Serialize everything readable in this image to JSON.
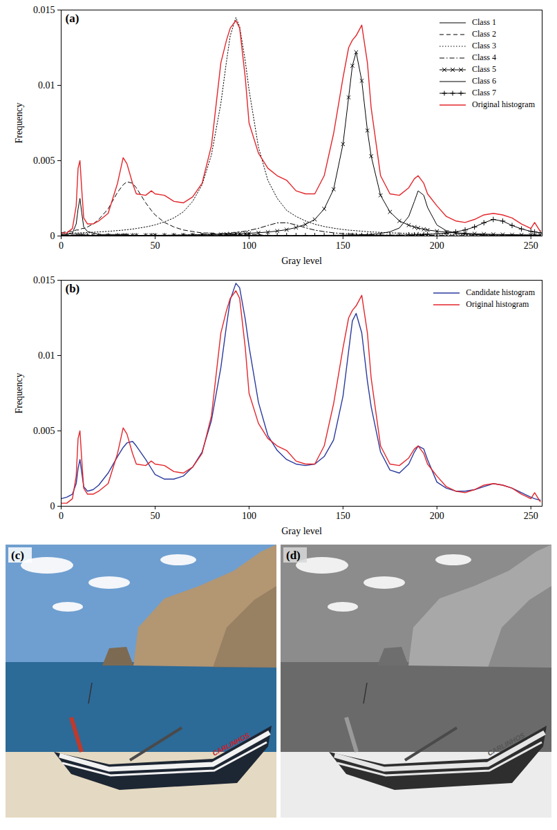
{
  "chart_data": [
    {
      "type": "line",
      "panel": "(a)",
      "xlabel": "Gray level",
      "ylabel": "Frequency",
      "xlim": [
        0,
        256
      ],
      "xticks": [
        0,
        50,
        100,
        150,
        200,
        250
      ],
      "ylim": [
        0,
        0.015
      ],
      "yticks": [
        0,
        0.005,
        0.01,
        0.015
      ],
      "grid": false,
      "legend": "top-right",
      "x": [
        0,
        3,
        6,
        8,
        9,
        10,
        11,
        12,
        14,
        17,
        20,
        25,
        30,
        33,
        35,
        38,
        40,
        45,
        48,
        50,
        55,
        60,
        65,
        70,
        75,
        80,
        85,
        88,
        90,
        93,
        95,
        98,
        100,
        105,
        110,
        115,
        120,
        125,
        130,
        135,
        140,
        145,
        150,
        153,
        155,
        157,
        160,
        163,
        165,
        170,
        175,
        180,
        185,
        188,
        190,
        193,
        195,
        200,
        205,
        210,
        215,
        220,
        225,
        230,
        235,
        240,
        245,
        250,
        252,
        255
      ],
      "series": [
        {
          "name": "Class 1",
          "color": "#000000",
          "line_style": "solid",
          "values": [
            0.0001,
            0.0001,
            0.0002,
            0.0008,
            0.0018,
            0.0025,
            0.0015,
            0.0006,
            0.0003,
            0.0002,
            0.0001,
            0.0001,
            0.0001,
            0.0001,
            0.0001,
            0,
            0,
            0,
            0,
            0,
            0,
            0,
            0,
            0,
            0,
            0,
            0,
            0,
            0,
            0,
            0,
            0,
            0,
            0,
            0,
            0,
            0,
            0,
            0,
            0,
            0,
            0,
            0,
            0,
            0,
            0,
            0,
            0,
            0,
            0,
            0,
            0,
            0,
            0,
            0,
            0,
            0,
            0,
            0,
            0,
            0,
            0,
            0,
            0,
            0,
            0,
            0,
            0,
            0,
            0
          ]
        },
        {
          "name": "Class 2",
          "color": "#000000",
          "line_style": "dashed",
          "values": [
            0.0002,
            0.0003,
            0.0003,
            0.0004,
            0.0004,
            0.0004,
            0.0005,
            0.0005,
            0.0006,
            0.0008,
            0.0011,
            0.0018,
            0.0029,
            0.0034,
            0.0036,
            0.0035,
            0.0032,
            0.0022,
            0.0017,
            0.0014,
            0.0009,
            0.0006,
            0.0004,
            0.0003,
            0.0002,
            0.0002,
            0.0001,
            0.0001,
            0.0001,
            0.0001,
            0.0001,
            0.0001,
            0.0001,
            0.0001,
            0,
            0,
            0,
            0,
            0,
            0,
            0,
            0,
            0,
            0,
            0,
            0,
            0,
            0,
            0,
            0,
            0,
            0,
            0,
            0,
            0,
            0,
            0,
            0,
            0,
            0,
            0,
            0,
            0,
            0,
            0,
            0,
            0,
            0,
            0,
            0
          ]
        },
        {
          "name": "Class 3",
          "color": "#000000",
          "line_style": "dotted",
          "values": [
            0.00017,
            0.00018,
            0.00019,
            0.0002,
            0.0002,
            0.00021,
            0.00021,
            0.00022,
            0.00023,
            0.00025,
            0.00027,
            0.00031,
            0.00036,
            0.00039,
            0.00042,
            0.00046,
            0.0005,
            0.0006,
            0.00068,
            0.00074,
            0.00094,
            0.0012,
            0.0016,
            0.0023,
            0.0034,
            0.0054,
            0.0088,
            0.0116,
            0.0133,
            0.0145,
            0.0139,
            0.0116,
            0.0097,
            0.0059,
            0.0037,
            0.0025,
            0.0017,
            0.0013,
            0.001,
            0.00078,
            0.00063,
            0.00052,
            0.00043,
            0.00039,
            0.00037,
            0.00035,
            0.00032,
            0.00029,
            0.00027,
            0.00024,
            0.00021,
            0.00019,
            0.00017,
            0.00016,
            0.00015,
            0.00014,
            0.00014,
            0.00013,
            0.00012,
            0.00011,
            0.0001,
            9e-05,
            8e-05,
            8e-05,
            7e-05,
            7e-05,
            6e-05,
            6e-05,
            6e-05,
            5e-05
          ]
        },
        {
          "name": "Class 4",
          "color": "#000000",
          "line_style": "dashdot",
          "values": [
            2e-05,
            2e-05,
            2e-05,
            2e-05,
            2e-05,
            2e-05,
            2e-05,
            2e-05,
            2e-05,
            2e-05,
            2e-05,
            3e-05,
            3e-05,
            3e-05,
            3e-05,
            3e-05,
            3e-05,
            4e-05,
            4e-05,
            5e-05,
            5e-05,
            6e-05,
            7e-05,
            8e-05,
            0.0001,
            0.00012,
            0.00015,
            0.00018,
            0.0002,
            0.00024,
            0.00027,
            0.00032,
            0.00037,
            0.00051,
            0.0007,
            0.00087,
            0.00088,
            0.00074,
            0.00055,
            0.00039,
            0.00029,
            0.00021,
            0.00016,
            0.00014,
            0.00013,
            0.00012,
            0.0001,
            9e-05,
            8e-05,
            7e-05,
            6e-05,
            5e-05,
            4e-05,
            4e-05,
            4e-05,
            4e-05,
            4e-05,
            4e-05,
            3e-05,
            3e-05,
            3e-05,
            3e-05,
            3e-05,
            3e-05,
            2e-05,
            2e-05,
            2e-05,
            2e-05,
            2e-05,
            2e-05
          ]
        },
        {
          "name": "Class 5",
          "color": "#000000",
          "line_style": "solid",
          "marker": "x",
          "values": [
            2e-05,
            2e-05,
            2e-05,
            2e-05,
            2e-05,
            2e-05,
            2e-05,
            2e-05,
            3e-05,
            3e-05,
            3e-05,
            3e-05,
            3e-05,
            4e-05,
            4e-05,
            4e-05,
            4e-05,
            5e-05,
            5e-05,
            5e-05,
            5e-05,
            6e-05,
            7e-05,
            8e-05,
            9e-05,
            0.0001,
            0.00011,
            0.00012,
            0.00013,
            0.00015,
            0.00016,
            0.00017,
            0.00018,
            0.00022,
            0.00026,
            0.00033,
            0.00042,
            0.00056,
            0.00077,
            0.0011,
            0.0018,
            0.0031,
            0.0061,
            0.0092,
            0.0113,
            0.0122,
            0.0103,
            0.007,
            0.0053,
            0.0027,
            0.0016,
            0.001,
            0.00072,
            0.00059,
            0.00053,
            0.00045,
            0.0004,
            0.00032,
            0.00025,
            0.00021,
            0.00018,
            0.00015,
            0.00013,
            0.00011,
            0.0001,
            9e-05,
            8e-05,
            7e-05,
            7e-05,
            6e-05
          ]
        },
        {
          "name": "Class 6",
          "color": "#000000",
          "line_style": "solid",
          "values": [
            2e-05,
            2e-05,
            2e-05,
            2e-05,
            2e-05,
            2e-05,
            2e-05,
            2e-05,
            2e-05,
            2e-05,
            2e-05,
            2e-05,
            2e-05,
            2e-05,
            2e-05,
            2e-05,
            2e-05,
            2e-05,
            2e-05,
            2e-05,
            2e-05,
            2e-05,
            2e-05,
            2e-05,
            2e-05,
            2e-05,
            2e-05,
            2e-05,
            2e-05,
            2e-05,
            3e-05,
            3e-05,
            3e-05,
            3e-05,
            3e-05,
            3e-05,
            3e-05,
            3e-05,
            3e-05,
            3e-05,
            5e-05,
            5e-05,
            6e-05,
            6e-05,
            7e-05,
            7e-05,
            8e-05,
            0.0001,
            0.00011,
            0.00017,
            0.00028,
            0.00053,
            0.0013,
            0.0023,
            0.003,
            0.0027,
            0.0019,
            0.00073,
            0.00035,
            0.0002,
            0.00013,
            0.0001,
            7e-05,
            7e-05,
            7e-05,
            5e-05,
            5e-05,
            5e-05,
            5e-05,
            5e-05
          ]
        },
        {
          "name": "Class 7",
          "color": "#000000",
          "line_style": "solid",
          "marker": "+",
          "values": [
            2e-05,
            2e-05,
            2e-05,
            2e-05,
            2e-05,
            2e-05,
            2e-05,
            2e-05,
            2e-05,
            2e-05,
            2e-05,
            2e-05,
            2e-05,
            2e-05,
            2e-05,
            2e-05,
            2e-05,
            2e-05,
            2e-05,
            2e-05,
            3e-05,
            3e-05,
            3e-05,
            3e-05,
            3e-05,
            3e-05,
            3e-05,
            3e-05,
            3e-05,
            3e-05,
            3e-05,
            3e-05,
            3e-05,
            3e-05,
            3e-05,
            3e-05,
            3e-05,
            3e-05,
            3e-05,
            3e-05,
            4e-05,
            4e-05,
            4e-05,
            4e-05,
            4e-05,
            4e-05,
            4e-05,
            4e-05,
            4e-05,
            5e-05,
            5e-05,
            6e-05,
            8e-05,
            8e-05,
            9e-05,
            0.0001,
            0.00011,
            0.00014,
            0.00019,
            0.00027,
            0.0004,
            0.0006,
            0.00088,
            0.0011,
            0.00099,
            0.0007,
            0.00047,
            0.00031,
            0.00027,
            0.00022
          ]
        },
        {
          "name": "Original histogram",
          "color": "#e3262b",
          "line_style": "solid",
          "values": [
            0.0002,
            0.0002,
            0.0005,
            0.002,
            0.0045,
            0.005,
            0.003,
            0.0012,
            0.0008,
            0.0008,
            0.001,
            0.0015,
            0.0035,
            0.0052,
            0.0048,
            0.0035,
            0.0028,
            0.0027,
            0.003,
            0.0028,
            0.0027,
            0.0023,
            0.0022,
            0.0026,
            0.0035,
            0.006,
            0.0115,
            0.013,
            0.0138,
            0.0143,
            0.0138,
            0.0105,
            0.0075,
            0.0055,
            0.0045,
            0.004,
            0.0037,
            0.003,
            0.0028,
            0.0028,
            0.004,
            0.0068,
            0.0105,
            0.0125,
            0.013,
            0.0133,
            0.014,
            0.0115,
            0.0085,
            0.004,
            0.0028,
            0.0027,
            0.0032,
            0.0038,
            0.004,
            0.0035,
            0.0028,
            0.002,
            0.0013,
            0.001,
            0.0009,
            0.0011,
            0.0014,
            0.0015,
            0.0014,
            0.0012,
            0.0008,
            0.0005,
            0.0009,
            0.0003
          ]
        }
      ]
    },
    {
      "type": "line",
      "panel": "(b)",
      "xlabel": "Gray level",
      "ylabel": "Frequency",
      "xlim": [
        0,
        256
      ],
      "xticks": [
        0,
        50,
        100,
        150,
        200,
        250
      ],
      "ylim": [
        0,
        0.015
      ],
      "yticks": [
        0,
        0.005,
        0.01,
        0.015
      ],
      "grid": false,
      "legend": "top-right",
      "x": [
        0,
        3,
        6,
        8,
        9,
        10,
        11,
        12,
        14,
        17,
        20,
        25,
        30,
        33,
        35,
        38,
        40,
        45,
        48,
        50,
        55,
        60,
        65,
        70,
        75,
        80,
        85,
        88,
        90,
        93,
        95,
        98,
        100,
        105,
        110,
        115,
        120,
        125,
        130,
        135,
        140,
        145,
        150,
        153,
        155,
        157,
        160,
        163,
        165,
        170,
        175,
        180,
        185,
        188,
        190,
        193,
        195,
        200,
        205,
        210,
        215,
        220,
        225,
        230,
        235,
        240,
        245,
        250,
        252,
        255
      ],
      "series": [
        {
          "name": "Candidate histogram",
          "color": "#2a3a9e",
          "line_style": "solid",
          "values": [
            0.0005,
            0.0006,
            0.0008,
            0.0015,
            0.0025,
            0.0031,
            0.0022,
            0.0013,
            0.001,
            0.0011,
            0.0014,
            0.0022,
            0.0033,
            0.0039,
            0.0042,
            0.0043,
            0.004,
            0.0031,
            0.0025,
            0.0021,
            0.0018,
            0.0018,
            0.002,
            0.0026,
            0.0036,
            0.0057,
            0.0092,
            0.012,
            0.0137,
            0.0148,
            0.0145,
            0.0124,
            0.0106,
            0.0069,
            0.0047,
            0.0037,
            0.0031,
            0.0028,
            0.0027,
            0.0028,
            0.0033,
            0.0044,
            0.0073,
            0.0103,
            0.0123,
            0.0128,
            0.0115,
            0.0083,
            0.0066,
            0.0036,
            0.0024,
            0.0022,
            0.0028,
            0.0036,
            0.004,
            0.0038,
            0.0031,
            0.0016,
            0.0012,
            0.001,
            0.001,
            0.0011,
            0.0013,
            0.0015,
            0.0014,
            0.0012,
            0.0009,
            0.0006,
            0.0005,
            0.0004
          ]
        },
        {
          "name": "Original histogram",
          "color": "#e3262b",
          "line_style": "solid",
          "values": [
            0.0002,
            0.0002,
            0.0005,
            0.002,
            0.0045,
            0.005,
            0.003,
            0.0012,
            0.0008,
            0.0008,
            0.001,
            0.0015,
            0.0035,
            0.0052,
            0.0048,
            0.0035,
            0.0028,
            0.0027,
            0.003,
            0.0028,
            0.0027,
            0.0023,
            0.0022,
            0.0026,
            0.0035,
            0.006,
            0.0115,
            0.013,
            0.0138,
            0.0143,
            0.0138,
            0.0105,
            0.0075,
            0.0055,
            0.0045,
            0.004,
            0.0037,
            0.003,
            0.0028,
            0.0028,
            0.004,
            0.0068,
            0.0105,
            0.0125,
            0.013,
            0.0133,
            0.014,
            0.0115,
            0.0085,
            0.004,
            0.0028,
            0.0027,
            0.0032,
            0.0038,
            0.004,
            0.0035,
            0.0028,
            0.002,
            0.0013,
            0.001,
            0.0009,
            0.0011,
            0.0014,
            0.0015,
            0.0014,
            0.0012,
            0.0008,
            0.0005,
            0.0009,
            0.0003
          ]
        }
      ]
    }
  ],
  "images": [
    {
      "panel": "(c)",
      "boat_text": "CARLINHOS"
    },
    {
      "panel": "(d)",
      "boat_text": "CARLINHOS"
    }
  ]
}
